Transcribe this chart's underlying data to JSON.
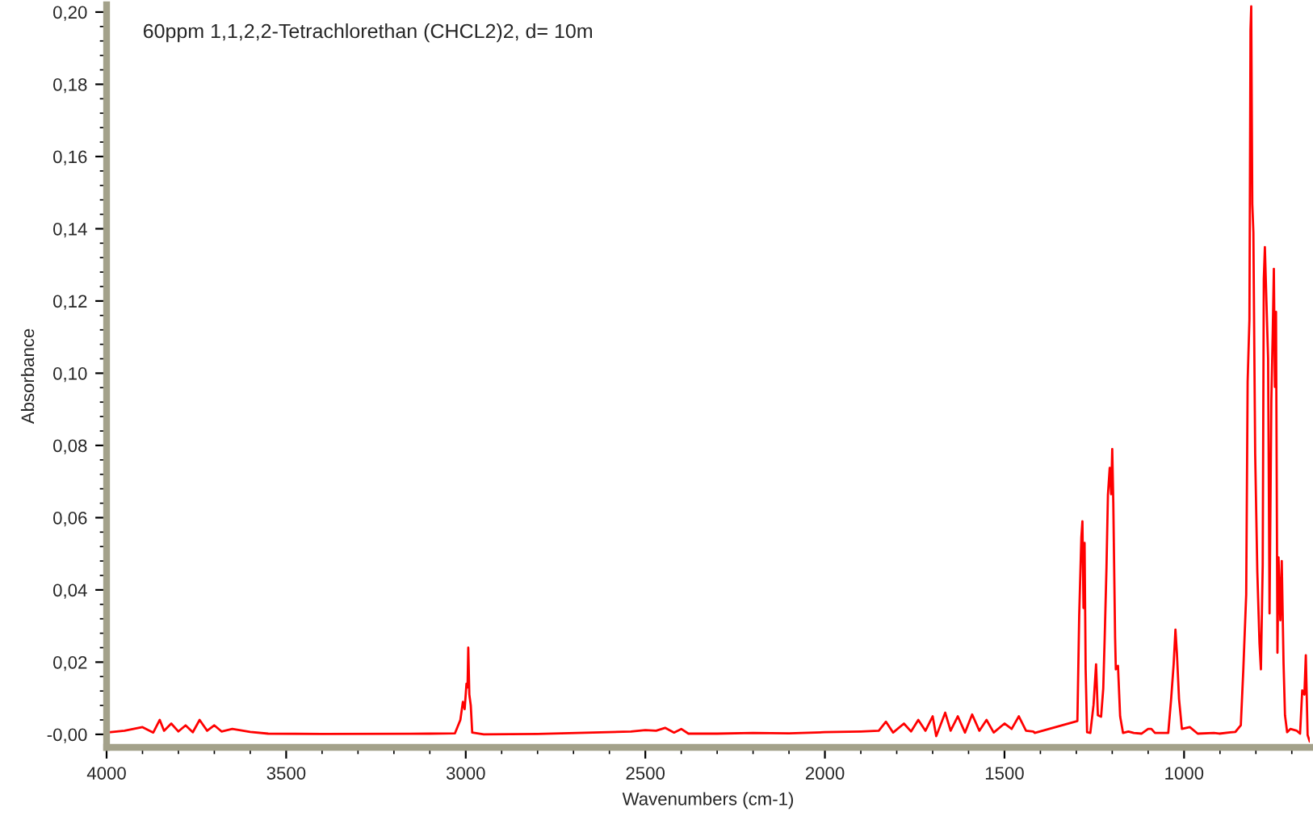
{
  "chart_data": {
    "type": "line",
    "title": "60ppm 1,1,2,2-Tetrachlorethan (CHCL2)2, d= 10m",
    "xlabel": "Wavenumbers (cm-1)",
    "ylabel": "Absorbance",
    "xlim": [
      4000,
      650
    ],
    "ylim": [
      -0.0036,
      0.202
    ],
    "xticks": [
      4000,
      {
        "value": 3900,
        "label": null
      },
      {
        "value": 3800,
        "label": null
      },
      {
        "value": 3700,
        "label": null
      },
      {
        "value": 3600,
        "label": null
      },
      3500,
      {
        "value": 3400,
        "label": null
      },
      {
        "value": 3300,
        "label": null
      },
      {
        "value": 3200,
        "label": null
      },
      {
        "value": 3100,
        "label": null
      },
      3000,
      {
        "value": 2900,
        "label": null
      },
      {
        "value": 2800,
        "label": null
      },
      {
        "value": 2700,
        "label": null
      },
      {
        "value": 2600,
        "label": null
      },
      2500,
      {
        "value": 2400,
        "label": null
      },
      {
        "value": 2300,
        "label": null
      },
      {
        "value": 2200,
        "label": null
      },
      {
        "value": 2100,
        "label": null
      },
      2000,
      {
        "value": 1900,
        "label": null
      },
      {
        "value": 1800,
        "label": null
      },
      {
        "value": 1700,
        "label": null
      },
      {
        "value": 1600,
        "label": null
      },
      1500,
      {
        "value": 1400,
        "label": null
      },
      {
        "value": 1300,
        "label": null
      },
      {
        "value": 1200,
        "label": null
      },
      {
        "value": 1100,
        "label": null
      },
      1000,
      {
        "value": 900,
        "label": null
      },
      {
        "value": 800,
        "label": null
      },
      {
        "value": 700,
        "label": null
      }
    ],
    "yticks": [
      {
        "value": 0,
        "label": "-0,00"
      },
      {
        "value": 0.004,
        "label": null
      },
      {
        "value": 0.008,
        "label": null
      },
      {
        "value": 0.012,
        "label": null
      },
      {
        "value": 0.016,
        "label": null
      },
      {
        "value": 0.02,
        "label": "0,02"
      },
      {
        "value": 0.024,
        "label": null
      },
      {
        "value": 0.028,
        "label": null
      },
      {
        "value": 0.032,
        "label": null
      },
      {
        "value": 0.036,
        "label": null
      },
      {
        "value": 0.04,
        "label": "0,04"
      },
      {
        "value": 0.044,
        "label": null
      },
      {
        "value": 0.048,
        "label": null
      },
      {
        "value": 0.052,
        "label": null
      },
      {
        "value": 0.056,
        "label": null
      },
      {
        "value": 0.06,
        "label": "0,06"
      },
      {
        "value": 0.064,
        "label": null
      },
      {
        "value": 0.068,
        "label": null
      },
      {
        "value": 0.072,
        "label": null
      },
      {
        "value": 0.076,
        "label": null
      },
      {
        "value": 0.08,
        "label": "0,08"
      },
      {
        "value": 0.084,
        "label": null
      },
      {
        "value": 0.088,
        "label": null
      },
      {
        "value": 0.092,
        "label": null
      },
      {
        "value": 0.096,
        "label": null
      },
      {
        "value": 0.1,
        "label": "0,10"
      },
      {
        "value": 0.104,
        "label": null
      },
      {
        "value": 0.108,
        "label": null
      },
      {
        "value": 0.112,
        "label": null
      },
      {
        "value": 0.116,
        "label": null
      },
      {
        "value": 0.12,
        "label": "0,12"
      },
      {
        "value": 0.124,
        "label": null
      },
      {
        "value": 0.128,
        "label": null
      },
      {
        "value": 0.132,
        "label": null
      },
      {
        "value": 0.136,
        "label": null
      },
      {
        "value": 0.14,
        "label": "0,14"
      },
      {
        "value": 0.144,
        "label": null
      },
      {
        "value": 0.148,
        "label": null
      },
      {
        "value": 0.152,
        "label": null
      },
      {
        "value": 0.156,
        "label": null
      },
      {
        "value": 0.16,
        "label": "0,16"
      },
      {
        "value": 0.164,
        "label": null
      },
      {
        "value": 0.168,
        "label": null
      },
      {
        "value": 0.172,
        "label": null
      },
      {
        "value": 0.176,
        "label": null
      },
      {
        "value": 0.18,
        "label": "0,18"
      },
      {
        "value": 0.184,
        "label": null
      },
      {
        "value": 0.188,
        "label": null
      },
      {
        "value": 0.192,
        "label": null
      },
      {
        "value": 0.196,
        "label": null
      },
      {
        "value": 0.2,
        "label": "0,20"
      }
    ],
    "grid": false,
    "legend": false,
    "marker": "none",
    "line_style": "solid",
    "series": [
      {
        "color": "#ff0000",
        "x": [
          4000,
          3950,
          3900,
          3870,
          3852,
          3840,
          3820,
          3800,
          3780,
          3760,
          3741,
          3720,
          3700,
          3680,
          3650,
          3600,
          3550,
          3400,
          3100,
          3030,
          3015,
          3008,
          3003,
          2998,
          2995,
          2993,
          2990,
          2986,
          2982,
          2950,
          2800,
          2540,
          2500,
          2470,
          2445,
          2420,
          2400,
          2380,
          2300,
          2200,
          2100,
          2000,
          1900,
          1850,
          1830,
          1810,
          1780,
          1760,
          1740,
          1720,
          1700,
          1690,
          1665,
          1650,
          1630,
          1610,
          1590,
          1570,
          1550,
          1530,
          1500,
          1480,
          1460,
          1440,
          1420,
          1416,
          1297,
          1292,
          1286,
          1283,
          1280,
          1277,
          1274,
          1270,
          1261,
          1252,
          1245,
          1240,
          1231,
          1225,
          1221,
          1216,
          1212,
          1207,
          1203,
          1200,
          1197,
          1192,
          1190,
          1184,
          1178,
          1170,
          1155,
          1140,
          1118,
          1100,
          1091,
          1081,
          1044,
          1036,
          1029,
          1024,
          1020,
          1014,
          1006,
          984,
          962,
          917,
          902,
          857,
          842,
          835,
          827,
          823,
          818,
          815,
          813,
          810,
          807,
          802,
          796,
          790,
          786,
          781,
          778,
          775,
          771,
          766,
          762,
          757,
          753,
          750,
          747,
          744,
          740,
          737,
          732,
          728,
          723,
          719,
          713,
          704,
          686,
          677,
          671,
          665,
          661,
          656,
          650
        ],
        "values": [
          0.0005,
          0.001,
          0.002,
          0.0005,
          0.004,
          0.001,
          0.003,
          0.0008,
          0.0025,
          0.0006,
          0.004,
          0.001,
          0.0025,
          0.0008,
          0.0015,
          0.0007,
          0.0002,
          0.0001,
          0.0002,
          0.0003,
          0.004,
          0.009,
          0.007,
          0.014,
          0.013,
          0.024,
          0.011,
          0.008,
          0.0005,
          0.0,
          0.0001,
          0.0008,
          0.0012,
          0.001,
          0.0018,
          0.0005,
          0.0015,
          0.0002,
          0.0002,
          0.0004,
          0.0003,
          0.0006,
          0.0008,
          0.001,
          0.0035,
          0.0005,
          0.003,
          0.0008,
          0.004,
          0.001,
          0.005,
          -0.0005,
          0.006,
          0.001,
          0.005,
          0.0005,
          0.0055,
          0.001,
          0.004,
          0.0005,
          0.003,
          0.0015,
          0.005,
          0.001,
          0.0008,
          0.0004,
          0.0037,
          0.0328,
          0.0545,
          0.059,
          0.035,
          0.053,
          0.018,
          0.0006,
          0.0004,
          0.0082,
          0.0194,
          0.0053,
          0.0049,
          0.0127,
          0.0268,
          0.0462,
          0.0663,
          0.0738,
          0.0665,
          0.079,
          0.064,
          0.0268,
          0.018,
          0.019,
          0.005,
          0.0004,
          0.0008,
          0.0004,
          0.0002,
          0.0015,
          0.0015,
          0.0004,
          0.0004,
          0.0098,
          0.0194,
          0.029,
          0.0226,
          0.0098,
          0.0015,
          0.002,
          0.0002,
          0.0004,
          0.0002,
          0.0007,
          0.0025,
          0.018,
          0.0387,
          0.0976,
          0.1149,
          0.1952,
          0.2016,
          0.1468,
          0.139,
          0.0775,
          0.0449,
          0.0252,
          0.018,
          0.047,
          0.126,
          0.1349,
          0.121,
          0.104,
          0.0335,
          0.0925,
          0.112,
          0.1289,
          0.0962,
          0.117,
          0.0226,
          0.049,
          0.0316,
          0.048,
          0.0197,
          0.0053,
          0.0006,
          0.0015,
          0.001,
          0.0002,
          0.0122,
          0.011,
          0.0219,
          -0.0002,
          -0.002
        ]
      }
    ]
  }
}
